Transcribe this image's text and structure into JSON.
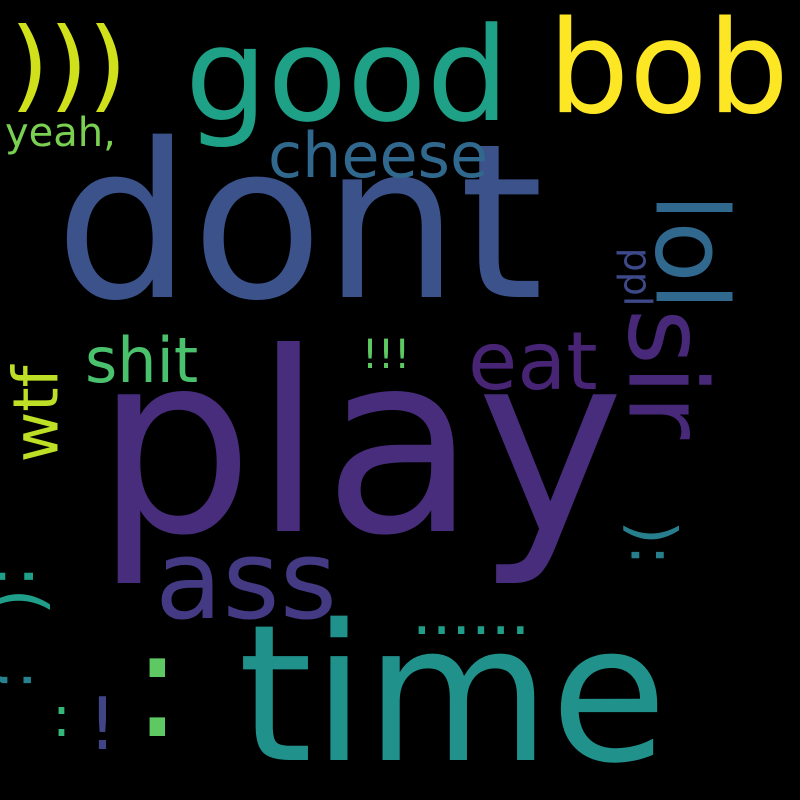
{
  "words": {
    "play": "play",
    "dont": "dont",
    "time": "time",
    "good": "good",
    "bob": "bob",
    "ass": "ass",
    "parens": ")))",
    "sir": "sir",
    "lol": "lol",
    "eat": "eat",
    "cheese": "cheese",
    "shit": "shit",
    "wtf": "wtf",
    "yeah": "yeah,",
    "ppl": "ppl",
    "bang3": "!!!",
    "colon_big": ":",
    "dots": "......",
    "face1": ":(",
    "face2": "):",
    "semi": ";",
    "colon2": ":",
    "bang1": "!"
  },
  "colors": {
    "background": "#000000",
    "palette": [
      "#472d7b",
      "#3b528b",
      "#21918c",
      "#1fa187",
      "#fde725",
      "#443983",
      "#d0e11c",
      "#482878",
      "#31688e",
      "#4ac16d",
      "#bddf26",
      "#7ad151",
      "#5ec962"
    ]
  }
}
